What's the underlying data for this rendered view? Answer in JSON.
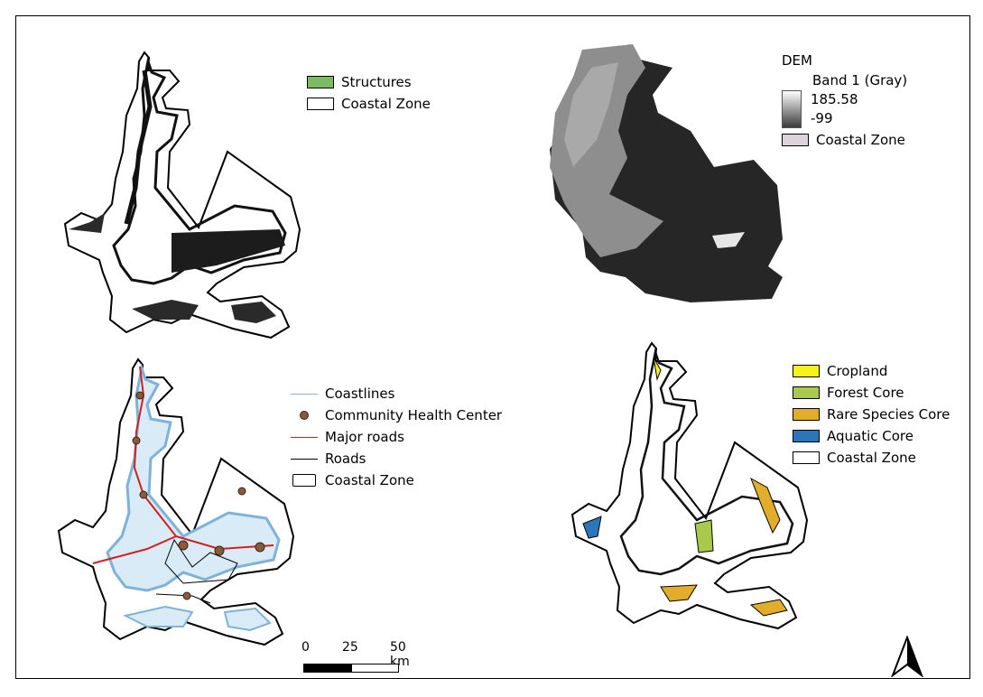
{
  "legend_structures": {
    "items": [
      {
        "label": "Structures",
        "fill": "#7dbb62"
      },
      {
        "label": "Coastal Zone",
        "fill": "#ffffff"
      }
    ]
  },
  "legend_dem": {
    "title": "DEM",
    "band": "Band 1 (Gray)",
    "max": "185.58",
    "min": "-99",
    "zone_label": "Coastal Zone",
    "zone_fill": "#dcd4da"
  },
  "legend_health": {
    "coastlines": "Coastlines",
    "health_center": "Community Health Center",
    "major_roads": "Major roads",
    "roads": "Roads",
    "coastal_zone": "Coastal Zone"
  },
  "legend_core": {
    "items": [
      {
        "label": "Cropland",
        "fill": "#f6f21c"
      },
      {
        "label": "Forest Core",
        "fill": "#a8c94c"
      },
      {
        "label": "Rare Species Core",
        "fill": "#e2ad2a"
      },
      {
        "label": "Aquatic Core",
        "fill": "#2a76b8"
      },
      {
        "label": "Coastal Zone",
        "fill": "#ffffff"
      }
    ]
  },
  "scale": {
    "t0": "0",
    "t1": "25",
    "t2": "50 km"
  },
  "colors": {
    "coast": "#7fb2d8",
    "major_road": "#d21f1f",
    "health": "#8b5a3c",
    "dem_dark": "#262626"
  },
  "north_arrow": "north-arrow-icon"
}
